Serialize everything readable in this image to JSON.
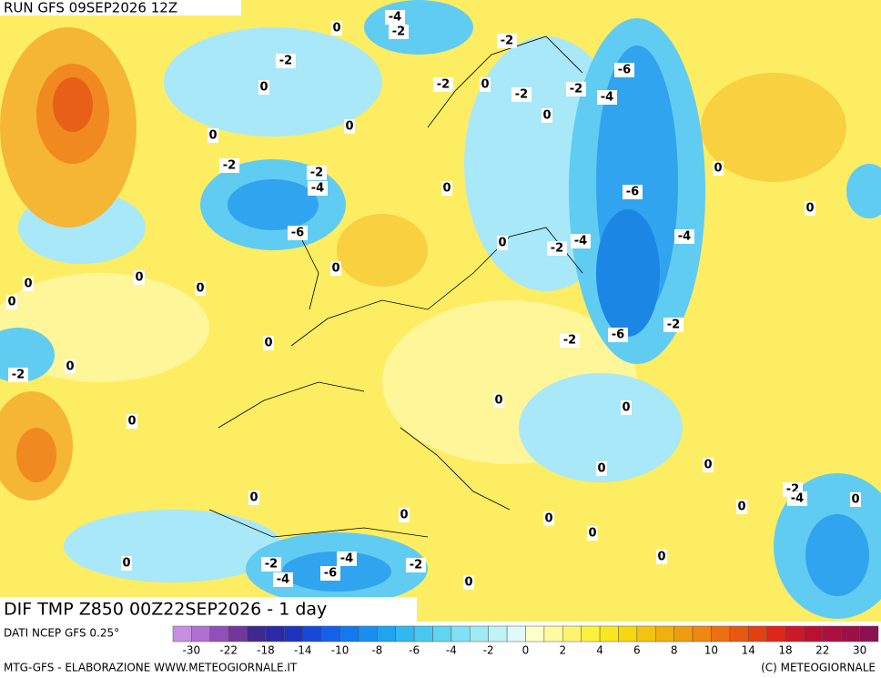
{
  "header": {
    "run": "RUN GFS 09SEP2026 12Z",
    "title": "DIF TMP Z850 00Z22SEP2026 - 1 day"
  },
  "map": {
    "contour_labels": [
      "-4",
      "-2",
      "0",
      "-2",
      "0",
      "-2",
      "-2",
      "0",
      "-2",
      "-2",
      "-4",
      "-6",
      "0",
      "0",
      "0",
      "-2",
      "-2",
      "-4",
      "-6",
      "0",
      "0",
      "0",
      "-6",
      "-2",
      "-4",
      "-4",
      "0",
      "0",
      "0",
      "0",
      "0",
      "0",
      "-2",
      "-6",
      "-2",
      "0",
      "0",
      "-2",
      "0",
      "0",
      "0",
      "0",
      "0",
      "0",
      "-2",
      "-4",
      "0",
      "0",
      "0",
      "0",
      "0",
      "0",
      "-2",
      "-4",
      "-6",
      "-4",
      "-2",
      "0",
      "0"
    ]
  },
  "colorbar": {
    "colors": [
      "#c88ee0",
      "#b070d0",
      "#9050b8",
      "#70389a",
      "#3c2a90",
      "#2a2aa8",
      "#1c34c0",
      "#1848d8",
      "#1460e8",
      "#1478f0",
      "#1890f0",
      "#20a4f0",
      "#30b8f0",
      "#48c8f0",
      "#60d4f0",
      "#80e0f4",
      "#a0eaf6",
      "#c0f2f8",
      "#e0faf8",
      "#ffffcc",
      "#fffaa0",
      "#fff470",
      "#fff040",
      "#f8e820",
      "#f4d810",
      "#f2c410",
      "#f0b010",
      "#f09c10",
      "#ee8810",
      "#ec7010",
      "#e85810",
      "#e44010",
      "#dc2818",
      "#cc1828",
      "#bc1030",
      "#ac1040",
      "#9c1048",
      "#8c1050"
    ],
    "ticks": [
      -30,
      -22,
      -18,
      -14,
      -10,
      -8,
      -6,
      -4,
      -2,
      0,
      2,
      4,
      6,
      8,
      10,
      14,
      18,
      22,
      30
    ]
  },
  "footer": {
    "source": "DATI NCEP GFS 0.25°",
    "credit": "MTG-GFS - ELABORAZIONE WWW.METEOGIORNALE.IT",
    "copyright": "(C) METEOGIORNALE"
  }
}
